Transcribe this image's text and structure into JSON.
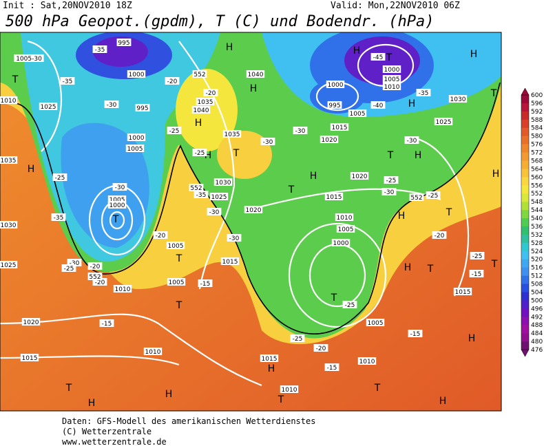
{
  "header": {
    "init": "Init : Sat,20NOV2010 18Z",
    "valid": "Valid: Mon,22NOV2010 06Z",
    "title": "500 hPa Geopot.(gpdm), T (C) und Bodendr. (hPa)"
  },
  "colorbar": {
    "labels": [
      "600",
      "596",
      "592",
      "588",
      "584",
      "580",
      "576",
      "572",
      "568",
      "564",
      "560",
      "556",
      "552",
      "548",
      "544",
      "540",
      "536",
      "532",
      "528",
      "524",
      "520",
      "516",
      "512",
      "508",
      "504",
      "500",
      "496",
      "492",
      "488",
      "484",
      "480",
      "476"
    ],
    "colors": [
      "#9c0a3c",
      "#b5163a",
      "#c82a2a",
      "#d8402a",
      "#e05a2a",
      "#e8702a",
      "#ee862c",
      "#f29a30",
      "#f5ad34",
      "#f8c23a",
      "#fad640",
      "#f5e63e",
      "#d8e83a",
      "#b0e03a",
      "#80d840",
      "#50cc50",
      "#30c070",
      "#30c0a0",
      "#30c8d0",
      "#40c0f0",
      "#40a8f0",
      "#4090f0",
      "#3070e8",
      "#2850e0",
      "#3030d0",
      "#5020c8",
      "#7010c0",
      "#8c10b0",
      "#a010a0",
      "#901090",
      "#701070"
    ]
  },
  "map": {
    "centers": [
      "T",
      "H",
      "T",
      "H",
      "H",
      "T",
      "H",
      "H",
      "H",
      "T",
      "H",
      "T",
      "H",
      "H",
      "T",
      "T",
      "H",
      "T",
      "T",
      "T",
      "H",
      "T",
      "H",
      "T",
      "T",
      "H",
      "T",
      "H",
      "H",
      "H",
      "T",
      "T",
      "H",
      "H"
    ],
    "labels": [
      "1005-30",
      "995",
      "-35",
      "-35",
      "1025",
      "1000",
      "-30",
      "995",
      "1000",
      "1005",
      "-25",
      "-30",
      "1005",
      "1000",
      "-35",
      "-30",
      "-20",
      "-25",
      "-20",
      "1005",
      "1005",
      "-15",
      "1010",
      "-20",
      "1020",
      "-15",
      "1015",
      "1010",
      "1015",
      "-30",
      "-30",
      "1025",
      "-35",
      "-25",
      "1035",
      "1040",
      "-20",
      "-25",
      "-20",
      "1030",
      "1035",
      "1040",
      "-30",
      "-30",
      "1020",
      "1015",
      "1005",
      "995",
      "1000",
      "-45",
      "1000",
      "1005",
      "1010",
      "-40",
      "-35",
      "1030",
      "1025",
      "-30",
      "1020",
      "-25",
      "1015",
      "1020",
      "1010",
      "1005",
      "1000",
      "-30",
      "-25",
      "-20",
      "-25",
      "-15",
      "1015",
      "-25",
      "1005",
      "-15",
      "-25",
      "-20",
      "-15",
      "1010",
      "1015",
      "1010",
      "552",
      "552",
      "552",
      "552",
      "1035",
      "1030",
      "1025",
      "1010"
    ]
  },
  "footer": {
    "lines": [
      "Daten: GFS-Modell des amerikanischen Wetterdienstes",
      "(C) Wetterzentrale",
      "www.wetterzentrale.de"
    ]
  }
}
